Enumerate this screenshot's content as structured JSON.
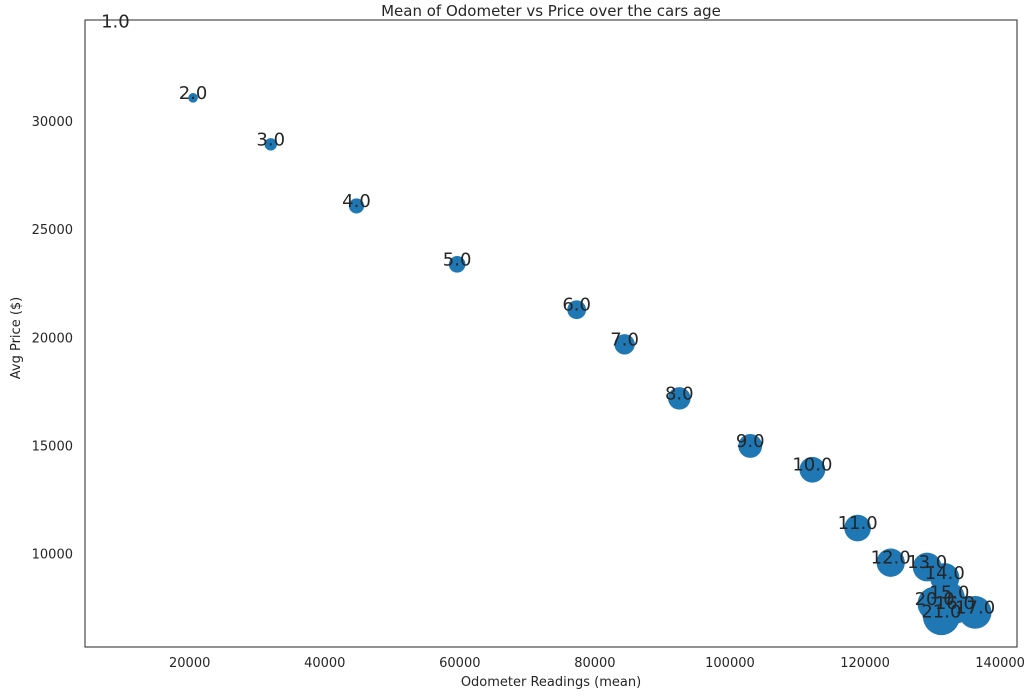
{
  "chart_data": {
    "type": "scatter",
    "title": "Mean of Odometer vs Price over the cars age",
    "xlabel": "Odometer Readings (mean)",
    "ylabel": "Avg Price ($)",
    "xlim": [
      4500,
      142500
    ],
    "ylim": [
      5700,
      34700
    ],
    "xticks": [
      20000,
      40000,
      60000,
      80000,
      100000,
      120000,
      140000
    ],
    "yticks": [
      10000,
      15000,
      20000,
      25000,
      30000
    ],
    "grid": false,
    "point_color": "#1f77b4",
    "points": [
      {
        "label": "1.0",
        "x": 9000,
        "y": 34400,
        "size": 0
      },
      {
        "label": "2.0",
        "x": 20500,
        "y": 31100,
        "size": 60
      },
      {
        "label": "3.0",
        "x": 32000,
        "y": 28950,
        "size": 100
      },
      {
        "label": "4.0",
        "x": 44700,
        "y": 26100,
        "size": 150
      },
      {
        "label": "5.0",
        "x": 59600,
        "y": 23400,
        "size": 180
      },
      {
        "label": "6.0",
        "x": 77300,
        "y": 21300,
        "size": 230
      },
      {
        "label": "7.0",
        "x": 84400,
        "y": 19700,
        "size": 270
      },
      {
        "label": "8.0",
        "x": 92500,
        "y": 17200,
        "size": 330
      },
      {
        "label": "9.0",
        "x": 103000,
        "y": 15000,
        "size": 370
      },
      {
        "label": "10.0",
        "x": 112200,
        "y": 13900,
        "size": 430
      },
      {
        "label": "11.0",
        "x": 118900,
        "y": 11200,
        "size": 460
      },
      {
        "label": "12.0",
        "x": 123800,
        "y": 9600,
        "size": 520
      },
      {
        "label": "13.0",
        "x": 129200,
        "y": 9400,
        "size": 540
      },
      {
        "label": "14.0",
        "x": 131800,
        "y": 8900,
        "size": 560
      },
      {
        "label": "15.0",
        "x": 132500,
        "y": 8000,
        "size": 600
      },
      {
        "label": "16.0",
        "x": 133300,
        "y": 7500,
        "size": 650
      },
      {
        "label": "17.0",
        "x": 136300,
        "y": 7300,
        "size": 700
      },
      {
        "label": "20.0",
        "x": 130300,
        "y": 7700,
        "size": 760
      },
      {
        "label": "21.0",
        "x": 131300,
        "y": 7100,
        "size": 880
      }
    ]
  }
}
